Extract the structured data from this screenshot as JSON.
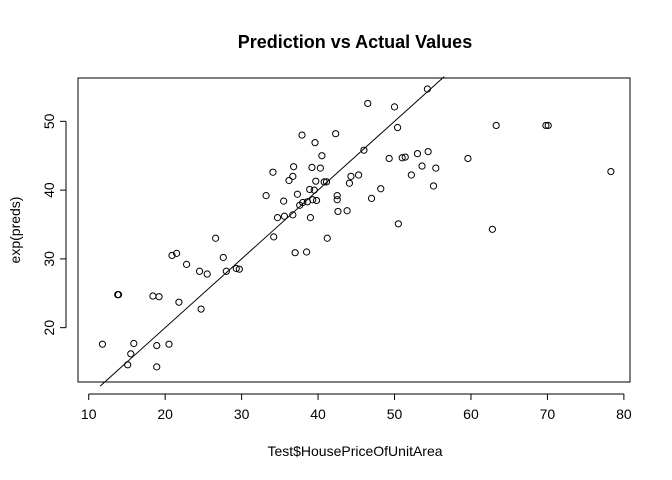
{
  "chart_data": {
    "type": "scatter",
    "title": "Prediction vs Actual Values",
    "xlabel": "Test$HousePriceOfUnitArea",
    "ylabel": "exp(preds)",
    "xlim": [
      8.6,
      80.8
    ],
    "ylim": [
      12.1,
      56.3
    ],
    "xticks": [
      10,
      20,
      30,
      40,
      50,
      60,
      70,
      80
    ],
    "yticks": [
      20,
      30,
      40,
      50
    ],
    "reference_line": {
      "type": "identity",
      "x": [
        11.5,
        56.5
      ],
      "y": [
        11.5,
        56.5
      ]
    },
    "points": [
      [
        11.8,
        17.6
      ],
      [
        13.8,
        24.8
      ],
      [
        13.9,
        24.8
      ],
      [
        15.1,
        14.6
      ],
      [
        15.5,
        16.2
      ],
      [
        15.9,
        17.7
      ],
      [
        18.4,
        24.6
      ],
      [
        18.9,
        14.3
      ],
      [
        18.9,
        17.4
      ],
      [
        19.2,
        24.5
      ],
      [
        20.5,
        17.6
      ],
      [
        20.9,
        30.5
      ],
      [
        21.5,
        30.8
      ],
      [
        21.8,
        23.7
      ],
      [
        22.8,
        29.2
      ],
      [
        24.5,
        28.2
      ],
      [
        24.7,
        22.7
      ],
      [
        25.5,
        27.8
      ],
      [
        26.6,
        33.0
      ],
      [
        27.6,
        30.2
      ],
      [
        28.0,
        28.2
      ],
      [
        29.3,
        28.6
      ],
      [
        29.7,
        28.5
      ],
      [
        33.2,
        39.2
      ],
      [
        34.2,
        33.2
      ],
      [
        34.1,
        42.6
      ],
      [
        34.7,
        36.0
      ],
      [
        35.5,
        38.4
      ],
      [
        35.6,
        36.2
      ],
      [
        36.2,
        41.4
      ],
      [
        36.7,
        42.0
      ],
      [
        36.7,
        36.4
      ],
      [
        36.8,
        43.4
      ],
      [
        37.0,
        30.9
      ],
      [
        37.3,
        39.4
      ],
      [
        37.6,
        37.8
      ],
      [
        37.9,
        48.0
      ],
      [
        38.0,
        38.2
      ],
      [
        38.5,
        31.0
      ],
      [
        38.6,
        38.3
      ],
      [
        38.9,
        40.1
      ],
      [
        39.0,
        36.0
      ],
      [
        39.2,
        43.3
      ],
      [
        39.3,
        38.6
      ],
      [
        39.5,
        40.0
      ],
      [
        39.6,
        46.9
      ],
      [
        39.7,
        41.3
      ],
      [
        39.8,
        38.5
      ],
      [
        40.3,
        43.2
      ],
      [
        40.5,
        45.0
      ],
      [
        40.8,
        41.2
      ],
      [
        41.1,
        41.2
      ],
      [
        41.2,
        33.0
      ],
      [
        42.3,
        48.2
      ],
      [
        42.5,
        38.6
      ],
      [
        42.5,
        39.2
      ],
      [
        42.6,
        36.9
      ],
      [
        43.8,
        37.0
      ],
      [
        44.1,
        41.0
      ],
      [
        44.3,
        42.0
      ],
      [
        45.3,
        42.2
      ],
      [
        46.0,
        45.8
      ],
      [
        46.5,
        52.6
      ],
      [
        47.0,
        38.8
      ],
      [
        48.2,
        40.2
      ],
      [
        49.3,
        44.6
      ],
      [
        50.0,
        52.1
      ],
      [
        50.4,
        49.1
      ],
      [
        50.5,
        35.1
      ],
      [
        51.0,
        44.7
      ],
      [
        51.4,
        44.8
      ],
      [
        52.2,
        42.2
      ],
      [
        53.0,
        45.3
      ],
      [
        53.6,
        43.5
      ],
      [
        54.3,
        54.7
      ],
      [
        54.4,
        45.6
      ],
      [
        55.1,
        40.6
      ],
      [
        55.4,
        43.2
      ],
      [
        59.6,
        44.6
      ],
      [
        62.8,
        34.3
      ],
      [
        63.3,
        49.4
      ],
      [
        69.8,
        49.4
      ],
      [
        70.1,
        49.4
      ],
      [
        78.3,
        42.7
      ]
    ]
  }
}
